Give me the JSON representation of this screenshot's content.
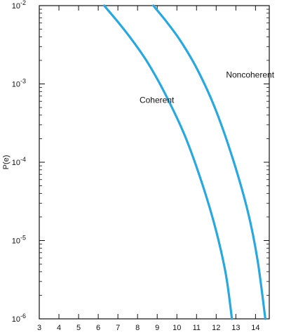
{
  "chart_data": {
    "type": "line",
    "title": "",
    "xlabel": "",
    "ylabel": "P(e)",
    "xlim": [
      3,
      14.7
    ],
    "ylim": [
      1e-06,
      0.01
    ],
    "yscale": "log",
    "grid": false,
    "x_ticks": [
      "3",
      "4",
      "5",
      "6",
      "7",
      "8",
      "9",
      "10",
      "11",
      "12",
      "13",
      "14"
    ],
    "y_ticks": [
      {
        "value": 0.01,
        "base": "10",
        "exp": "-2"
      },
      {
        "value": 0.001,
        "base": "10",
        "exp": "-3"
      },
      {
        "value": 0.0001,
        "base": "10",
        "exp": "-4"
      },
      {
        "value": 1e-05,
        "base": "10",
        "exp": "-5"
      },
      {
        "value": 1e-06,
        "base": "10",
        "exp": "-6"
      }
    ],
    "series_color": "#29a8e0",
    "series": [
      {
        "name": "Coherent",
        "points": [
          [
            6.3,
            0.01
          ],
          [
            7.0,
            0.0062
          ],
          [
            7.7,
            0.0037
          ],
          [
            8.5,
            0.0019
          ],
          [
            9.4,
            0.00075
          ],
          [
            10.4,
            0.00022
          ],
          [
            11.3,
            5.2e-05
          ],
          [
            12.0,
            1.32e-05
          ],
          [
            12.5,
            3.6e-06
          ],
          [
            12.8,
            1e-06
          ]
        ],
        "label_at": [
          8.1,
          0.00057
        ]
      },
      {
        "name": "Noncoherent",
        "points": [
          [
            8.8,
            0.01
          ],
          [
            9.5,
            0.0061
          ],
          [
            10.2,
            0.0035
          ],
          [
            11.0,
            0.0016
          ],
          [
            11.9,
            0.00052
          ],
          [
            12.8,
            0.00012
          ],
          [
            13.6,
            2.4e-05
          ],
          [
            14.1,
            5.7e-06
          ],
          [
            14.5,
            1e-06
          ]
        ],
        "label_at": [
          12.5,
          0.0012
        ]
      }
    ]
  }
}
